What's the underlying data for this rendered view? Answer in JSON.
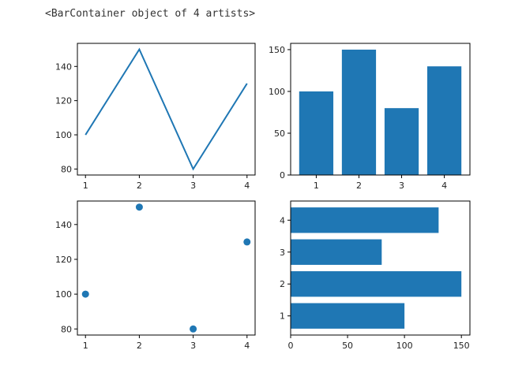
{
  "console_output": "<BarContainer object of 4 artists>",
  "chart_data": [
    {
      "type": "line",
      "x": [
        1,
        2,
        3,
        4
      ],
      "y": [
        100,
        150,
        80,
        130
      ],
      "xticks": [
        1,
        2,
        3,
        4
      ],
      "yticks": [
        80,
        100,
        120,
        140
      ],
      "xlim": [
        0.85,
        4.15
      ],
      "ylim": [
        76.5,
        153.5
      ],
      "color": "#1f77b4",
      "grid": false
    },
    {
      "type": "bar",
      "categories": [
        1,
        2,
        3,
        4
      ],
      "values": [
        100,
        150,
        80,
        130
      ],
      "yticks": [
        0,
        50,
        100,
        150
      ],
      "xlim": [
        0.4,
        4.6
      ],
      "ylim": [
        0,
        157.5
      ],
      "color": "#1f77b4",
      "grid": false
    },
    {
      "type": "scatter",
      "x": [
        1,
        2,
        3,
        4
      ],
      "y": [
        100,
        150,
        80,
        130
      ],
      "xticks": [
        1,
        2,
        3,
        4
      ],
      "yticks": [
        80,
        100,
        120,
        140
      ],
      "xlim": [
        0.85,
        4.15
      ],
      "ylim": [
        76.5,
        153.5
      ],
      "color": "#1f77b4",
      "grid": false
    },
    {
      "type": "barh",
      "categories": [
        1,
        2,
        3,
        4
      ],
      "values": [
        100,
        150,
        80,
        130
      ],
      "xticks": [
        0,
        50,
        100,
        150
      ],
      "xlim": [
        0,
        157.5
      ],
      "ylim": [
        0.4,
        4.6
      ],
      "color": "#1f77b4",
      "grid": false
    }
  ]
}
